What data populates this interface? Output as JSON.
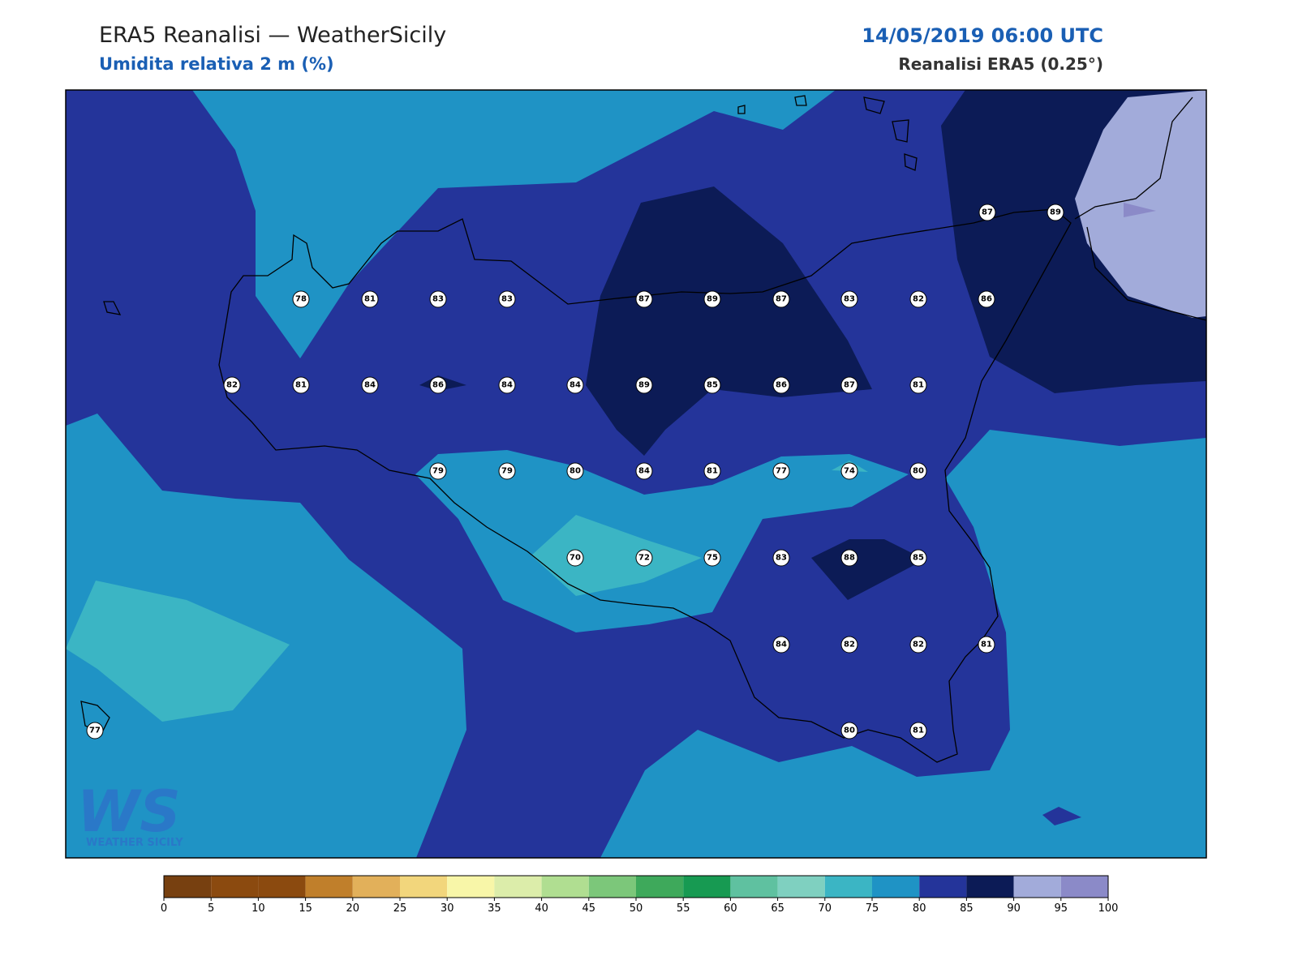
{
  "header": {
    "title": "ERA5 Reanalisi — WeatherSicily",
    "subtitle": "Umidita relativa 2 m (%)",
    "datetime": "14/05/2019 06:00 UTC",
    "source": "Reanalisi ERA5 (0.25°)"
  },
  "stations": [
    87,
    89,
    78,
    81,
    83,
    83,
    87,
    89,
    87,
    83,
    82,
    86,
    82,
    81,
    84,
    86,
    84,
    84,
    89,
    85,
    86,
    87,
    81,
    79,
    79,
    80,
    84,
    81,
    77,
    74,
    80,
    70,
    72,
    75,
    83,
    88,
    85,
    84,
    82,
    82,
    81,
    77,
    80,
    81
  ],
  "colorbar": {
    "ticks": [
      0,
      5,
      10,
      15,
      20,
      25,
      30,
      35,
      40,
      45,
      50,
      55,
      60,
      65,
      70,
      75,
      80,
      85,
      90,
      95,
      100
    ],
    "colors": [
      "#774010",
      "#8b4a0f",
      "#8b4a0f",
      "#c07f2b",
      "#e2b05a",
      "#f2d67c",
      "#f8f6a8",
      "#dcedaa",
      "#b0de91",
      "#7cc77a",
      "#3ea95b",
      "#179a52",
      "#5fc1a0",
      "#7fd0c0",
      "#3bb5c4",
      "#1f93c5",
      "#24349a",
      "#0c1b56",
      "#a2abda",
      "#8b8ac8"
    ]
  },
  "logo": {
    "mark": "WS",
    "text": "WEATHER SICILY"
  }
}
